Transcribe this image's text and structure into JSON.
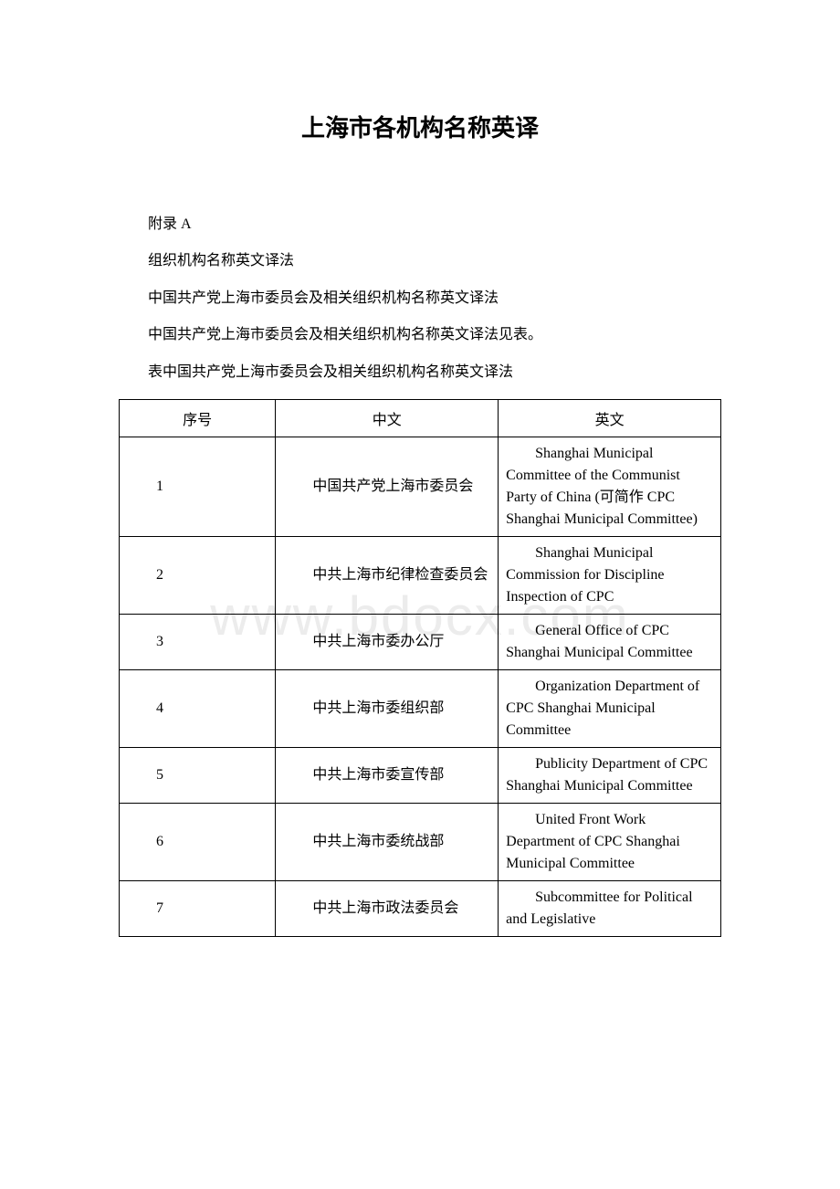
{
  "document": {
    "title": "上海市各机构名称英译",
    "appendix_label": "附录 A",
    "section_heading": "组织机构名称英文译法",
    "subsection_heading": "中国共产党上海市委员会及相关组织机构名称英文译法",
    "intro_line": "中国共产党上海市委员会及相关组织机构名称英文译法见表。",
    "table_caption": "表中国共产党上海市委员会及相关组织机构名称英文译法",
    "watermark": "www.bdocx.com"
  },
  "table": {
    "columns": [
      "序号",
      "中文",
      "英文"
    ],
    "rows": [
      {
        "seq": "1",
        "cn": "中国共产党上海市委员会",
        "en": "Shanghai Municipal Committee of the Communist Party of China (可简作 CPC Shanghai Municipal Committee)"
      },
      {
        "seq": "2",
        "cn": "中共上海市纪律检查委员会",
        "en": "Shanghai Municipal Commission for Discipline Inspection of CPC"
      },
      {
        "seq": "3",
        "cn": "中共上海市委办公厅",
        "en": "General Office of CPC Shanghai Municipal Committee"
      },
      {
        "seq": "4",
        "cn": "中共上海市委组织部",
        "en": "Organization Department of CPC Shanghai Municipal Committee"
      },
      {
        "seq": "5",
        "cn": "中共上海市委宣传部",
        "en": "Publicity Department of CPC Shanghai Municipal Committee"
      },
      {
        "seq": "6",
        "cn": "中共上海市委统战部",
        "en": "United Front Work Department of CPC Shanghai Municipal Committee"
      },
      {
        "seq": "7",
        "cn": "中共上海市政法委员会",
        "en": "Subcommittee for Political and Legislative"
      }
    ]
  }
}
